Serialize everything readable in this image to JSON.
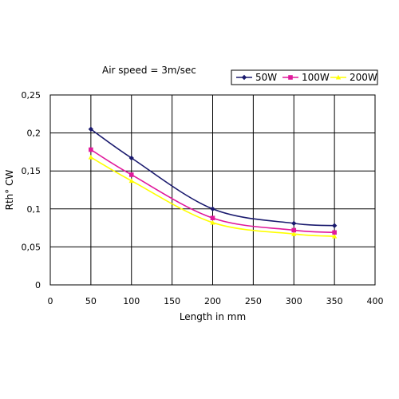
{
  "chart_data": {
    "type": "line",
    "title": "",
    "annotation": "Air speed = 3m/sec",
    "xlabel": "Length in mm",
    "ylabel": "Rth° CW",
    "xlim": [
      0,
      400
    ],
    "ylim": [
      0,
      0.25
    ],
    "xticks": [
      0,
      50,
      100,
      150,
      200,
      250,
      300,
      350,
      400
    ],
    "yticks": [
      0,
      0.05,
      0.1,
      0.15,
      0.2,
      0.25
    ],
    "xtick_labels": [
      "0",
      "50",
      "100",
      "150",
      "200",
      "250",
      "300",
      "350",
      "400"
    ],
    "ytick_labels": [
      "0",
      "0,05",
      "0,1",
      "0,15",
      "0,2",
      "0,25"
    ],
    "grid": true,
    "legend_position": "top-right",
    "x": [
      50,
      100,
      200,
      300,
      350
    ],
    "series": [
      {
        "name": "50W",
        "color": "#1a1a6e",
        "marker": "diamond",
        "values": [
          0.205,
          0.167,
          0.1,
          0.081,
          0.078
        ]
      },
      {
        "name": "100W",
        "color": "#e0199b",
        "marker": "square",
        "values": [
          0.178,
          0.145,
          0.088,
          0.072,
          0.069
        ]
      },
      {
        "name": "200W",
        "color": "#ffff00",
        "marker": "triangle",
        "values": [
          0.168,
          0.137,
          0.082,
          0.067,
          0.064
        ]
      }
    ]
  }
}
